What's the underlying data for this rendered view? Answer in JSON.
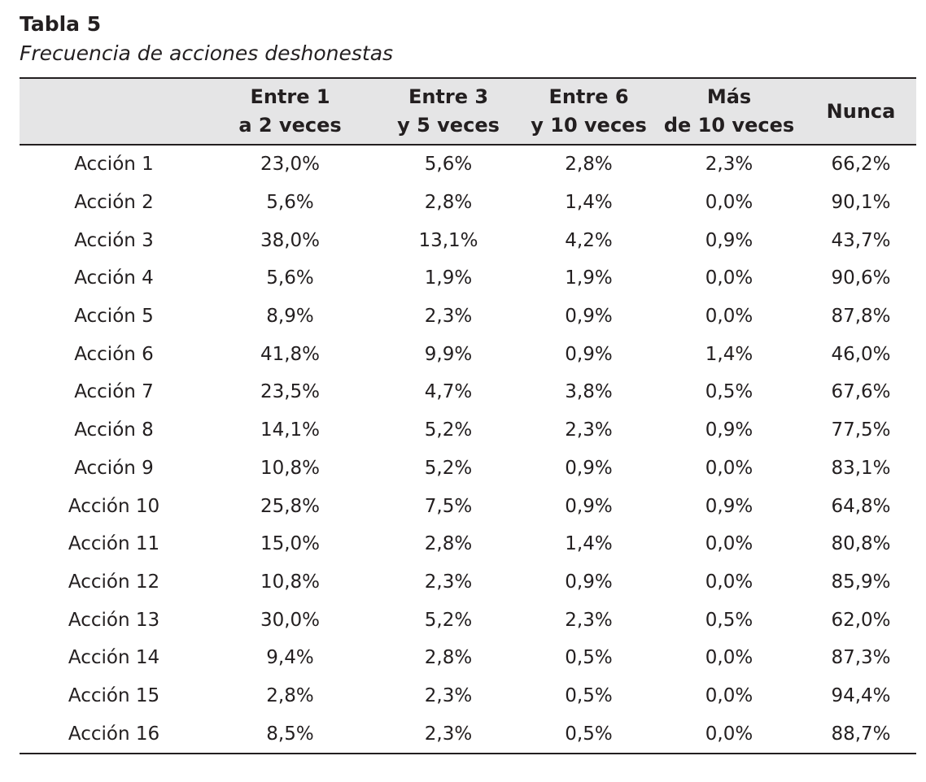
{
  "caption": {
    "title": "Tabla 5",
    "subtitle": "Frecuencia de acciones deshonestas"
  },
  "table": {
    "headers": [
      {
        "line1": "",
        "line2": ""
      },
      {
        "line1": "Entre 1",
        "line2": "a 2 veces"
      },
      {
        "line1": "Entre 3",
        "line2": "y 5 veces"
      },
      {
        "line1": "Entre 6",
        "line2": "y 10 veces"
      },
      {
        "line1": "Más",
        "line2": "de 10 veces"
      },
      {
        "line1": "Nunca",
        "line2": ""
      }
    ],
    "rows": [
      [
        "Acción 1",
        "23,0%",
        "5,6%",
        "2,8%",
        "2,3%",
        "66,2%"
      ],
      [
        "Acción 2",
        "5,6%",
        "2,8%",
        "1,4%",
        "0,0%",
        "90,1%"
      ],
      [
        "Acción 3",
        "38,0%",
        "13,1%",
        "4,2%",
        "0,9%",
        "43,7%"
      ],
      [
        "Acción 4",
        "5,6%",
        "1,9%",
        "1,9%",
        "0,0%",
        "90,6%"
      ],
      [
        "Acción 5",
        "8,9%",
        "2,3%",
        "0,9%",
        "0,0%",
        "87,8%"
      ],
      [
        "Acción 6",
        "41,8%",
        "9,9%",
        "0,9%",
        "1,4%",
        "46,0%"
      ],
      [
        "Acción 7",
        "23,5%",
        "4,7%",
        "3,8%",
        "0,5%",
        "67,6%"
      ],
      [
        "Acción 8",
        "14,1%",
        "5,2%",
        "2,3%",
        "0,9%",
        "77,5%"
      ],
      [
        "Acción 9",
        "10,8%",
        "5,2%",
        "0,9%",
        "0,0%",
        "83,1%"
      ],
      [
        "Acción 10",
        "25,8%",
        "7,5%",
        "0,9%",
        "0,9%",
        "64,8%"
      ],
      [
        "Acción 11",
        "15,0%",
        "2,8%",
        "1,4%",
        "0,0%",
        "80,8%"
      ],
      [
        "Acción 12",
        "10,8%",
        "2,3%",
        "0,9%",
        "0,0%",
        "85,9%"
      ],
      [
        "Acción 13",
        "30,0%",
        "5,2%",
        "2,3%",
        "0,5%",
        "62,0%"
      ],
      [
        "Acción 14",
        "9,4%",
        "2,8%",
        "0,5%",
        "0,0%",
        "87,3%"
      ],
      [
        "Acción 15",
        "2,8%",
        "2,3%",
        "0,5%",
        "0,0%",
        "94,4%"
      ],
      [
        "Acción 16",
        "8,5%",
        "2,3%",
        "0,5%",
        "0,0%",
        "88,7%"
      ]
    ]
  }
}
